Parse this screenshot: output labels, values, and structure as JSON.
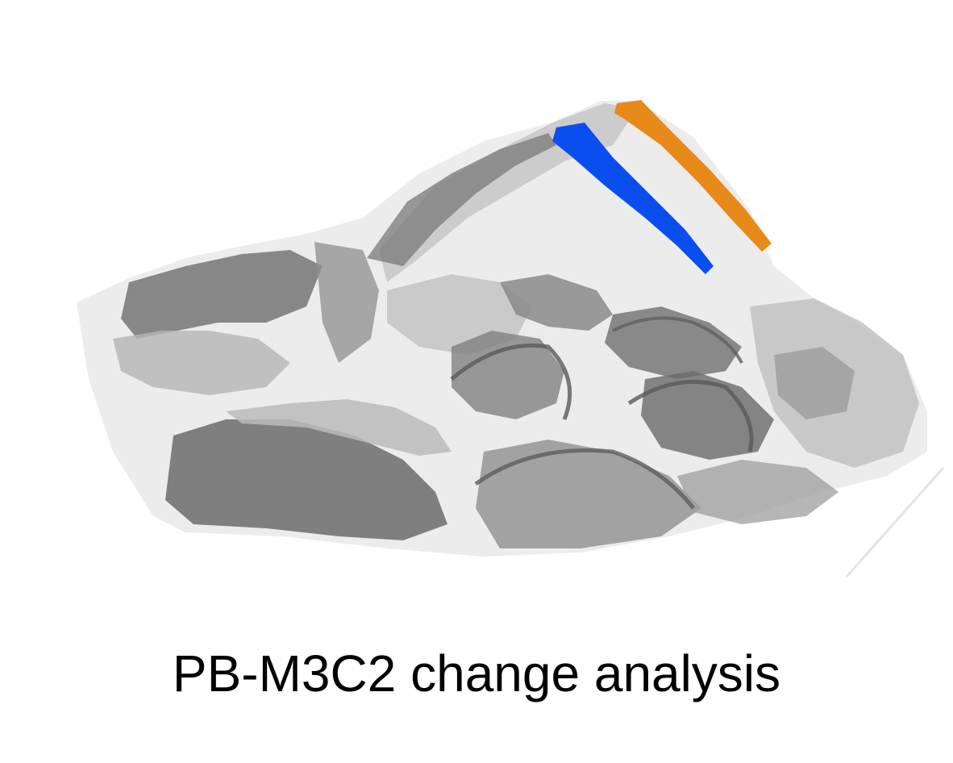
{
  "caption": {
    "text": "PB-M3C2 change analysis"
  },
  "point_cloud": {
    "colors": {
      "background": "#ffffff",
      "dark_gray": "#6e6e6e",
      "mid_gray": "#9a9a9a",
      "light_gray": "#c8c8c8",
      "very_light_gray": "#e2e2e2",
      "segment_blue": "#0a4ef0",
      "segment_orange": "#e88a1a"
    }
  }
}
